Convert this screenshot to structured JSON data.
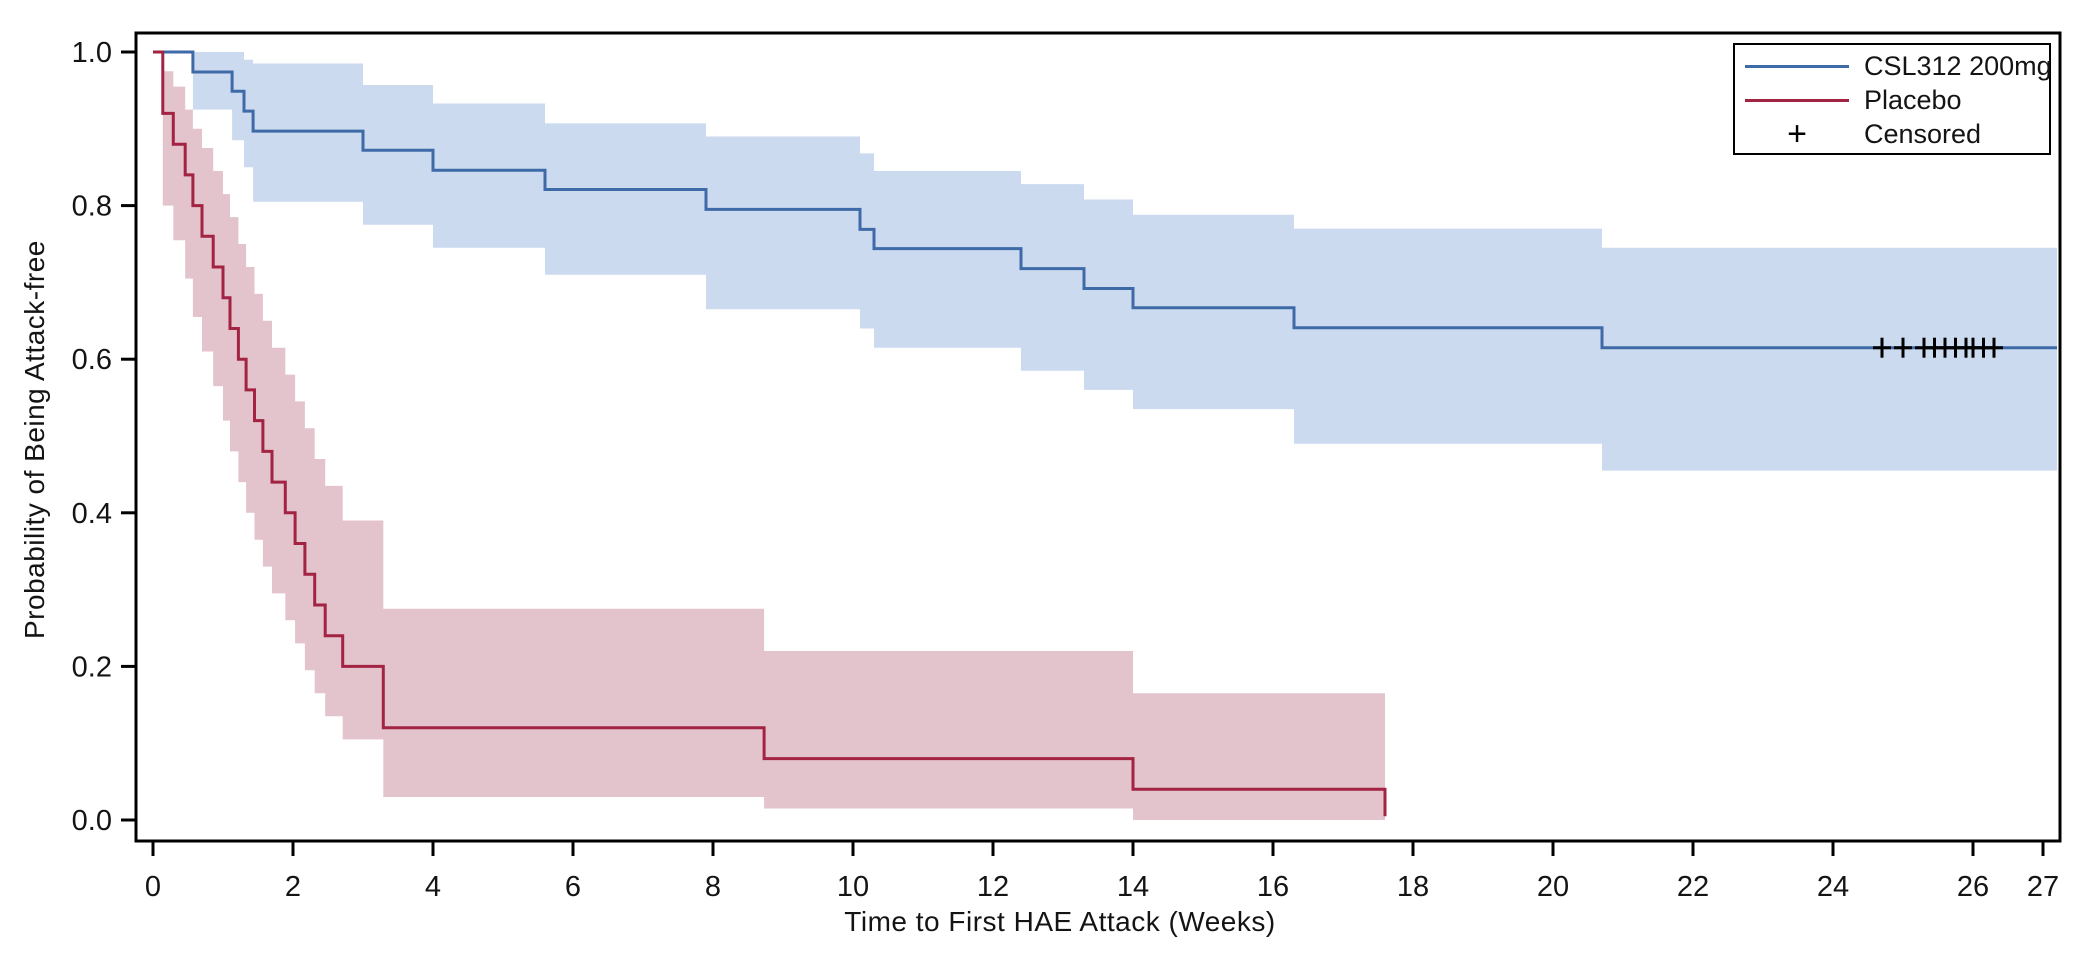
{
  "figure": {
    "kind": "kaplan-meier-plot"
  },
  "legend": {
    "entries": [
      {
        "label": "CSL312 200mg",
        "type": "line",
        "color": "#3f6aa8"
      },
      {
        "label": "Placebo",
        "type": "line",
        "color": "#a32343"
      },
      {
        "label": "Censored",
        "type": "marker",
        "symbol": "+",
        "color": "#000000"
      }
    ]
  },
  "chart_data": {
    "type": "line",
    "subtype": "kaplan-meier-step-with-confidence-bands",
    "title": "",
    "xlabel": "Time to First HAE Attack (Weeks)",
    "ylabel": "Probability of Being Attack-free",
    "xlim": [
      -0.3,
      27.3
    ],
    "ylim": [
      0.0,
      1.0
    ],
    "grid": false,
    "legend_position": "top-right",
    "xticks": [
      0,
      2,
      4,
      6,
      8,
      10,
      12,
      14,
      16,
      18,
      20,
      22,
      24,
      26,
      27
    ],
    "yticks": [
      0.0,
      0.2,
      0.4,
      0.6,
      0.8,
      1.0
    ],
    "ytick_labels": [
      "0.0",
      "0.2",
      "0.4",
      "0.6",
      "0.8",
      "1.0"
    ],
    "axis_color": "#000000",
    "series": [
      {
        "name": "CSL312 200mg",
        "line_color": "#3f6aa8",
        "band_color": "#ccdaef",
        "start": [
          0,
          1.0
        ],
        "steps": [
          [
            0.57,
            0.974
          ],
          [
            1.13,
            0.949
          ],
          [
            1.3,
            0.923
          ],
          [
            1.43,
            0.897
          ],
          [
            3.0,
            0.872
          ],
          [
            4.0,
            0.846
          ],
          [
            5.6,
            0.821
          ],
          [
            7.9,
            0.795
          ],
          [
            10.1,
            0.769
          ],
          [
            10.3,
            0.744
          ],
          [
            12.4,
            0.718
          ],
          [
            13.3,
            0.692
          ],
          [
            14.0,
            0.667
          ],
          [
            16.3,
            0.641
          ],
          [
            20.7,
            0.615
          ]
        ],
        "end_x": 27.2,
        "ci": [
          [
            0.57,
            0.925,
            1.0
          ],
          [
            1.13,
            0.885,
            1.0
          ],
          [
            1.3,
            0.85,
            0.99
          ],
          [
            1.43,
            0.805,
            0.985
          ],
          [
            3.0,
            0.775,
            0.957
          ],
          [
            4.0,
            0.745,
            0.933
          ],
          [
            5.6,
            0.71,
            0.907
          ],
          [
            7.9,
            0.665,
            0.89
          ],
          [
            10.1,
            0.64,
            0.868
          ],
          [
            10.3,
            0.615,
            0.845
          ],
          [
            12.4,
            0.585,
            0.828
          ],
          [
            13.3,
            0.56,
            0.808
          ],
          [
            14.0,
            0.535,
            0.788
          ],
          [
            16.3,
            0.49,
            0.77
          ],
          [
            20.7,
            0.455,
            0.745
          ]
        ],
        "ci_end_x": 27.2,
        "censored": {
          "y": 0.615,
          "times": [
            24.7,
            25.0,
            25.3,
            25.45,
            25.6,
            25.75,
            25.9,
            26.0,
            26.15,
            26.3
          ]
        }
      },
      {
        "name": "Placebo",
        "line_color": "#a32343",
        "band_color": "#e3c3cc",
        "start": [
          0,
          1.0
        ],
        "steps": [
          [
            0.14,
            0.92
          ],
          [
            0.29,
            0.88
          ],
          [
            0.46,
            0.84
          ],
          [
            0.57,
            0.8
          ],
          [
            0.7,
            0.76
          ],
          [
            0.86,
            0.72
          ],
          [
            1.0,
            0.68
          ],
          [
            1.1,
            0.64
          ],
          [
            1.22,
            0.6
          ],
          [
            1.33,
            0.56
          ],
          [
            1.45,
            0.52
          ],
          [
            1.57,
            0.48
          ],
          [
            1.7,
            0.44
          ],
          [
            1.89,
            0.4
          ],
          [
            2.03,
            0.36
          ],
          [
            2.17,
            0.32
          ],
          [
            2.31,
            0.28
          ],
          [
            2.46,
            0.24
          ],
          [
            2.71,
            0.2
          ],
          [
            3.29,
            0.12
          ],
          [
            8.73,
            0.08
          ],
          [
            14.0,
            0.04
          ],
          [
            17.6,
            0.005
          ]
        ],
        "end_x": 17.6,
        "ci": [
          [
            0.14,
            0.8,
            0.975
          ],
          [
            0.29,
            0.755,
            0.955
          ],
          [
            0.46,
            0.705,
            0.925
          ],
          [
            0.57,
            0.655,
            0.9
          ],
          [
            0.7,
            0.61,
            0.875
          ],
          [
            0.86,
            0.565,
            0.845
          ],
          [
            1.0,
            0.52,
            0.815
          ],
          [
            1.1,
            0.48,
            0.785
          ],
          [
            1.22,
            0.44,
            0.75
          ],
          [
            1.33,
            0.4,
            0.72
          ],
          [
            1.45,
            0.365,
            0.685
          ],
          [
            1.57,
            0.33,
            0.65
          ],
          [
            1.7,
            0.295,
            0.615
          ],
          [
            1.89,
            0.26,
            0.58
          ],
          [
            2.03,
            0.23,
            0.545
          ],
          [
            2.17,
            0.195,
            0.51
          ],
          [
            2.31,
            0.165,
            0.47
          ],
          [
            2.46,
            0.135,
            0.435
          ],
          [
            2.71,
            0.105,
            0.39
          ],
          [
            3.29,
            0.03,
            0.275
          ],
          [
            8.73,
            0.015,
            0.22
          ],
          [
            14.0,
            0.0,
            0.165
          ]
        ],
        "ci_end_x": 17.6,
        "censored": null
      }
    ]
  }
}
